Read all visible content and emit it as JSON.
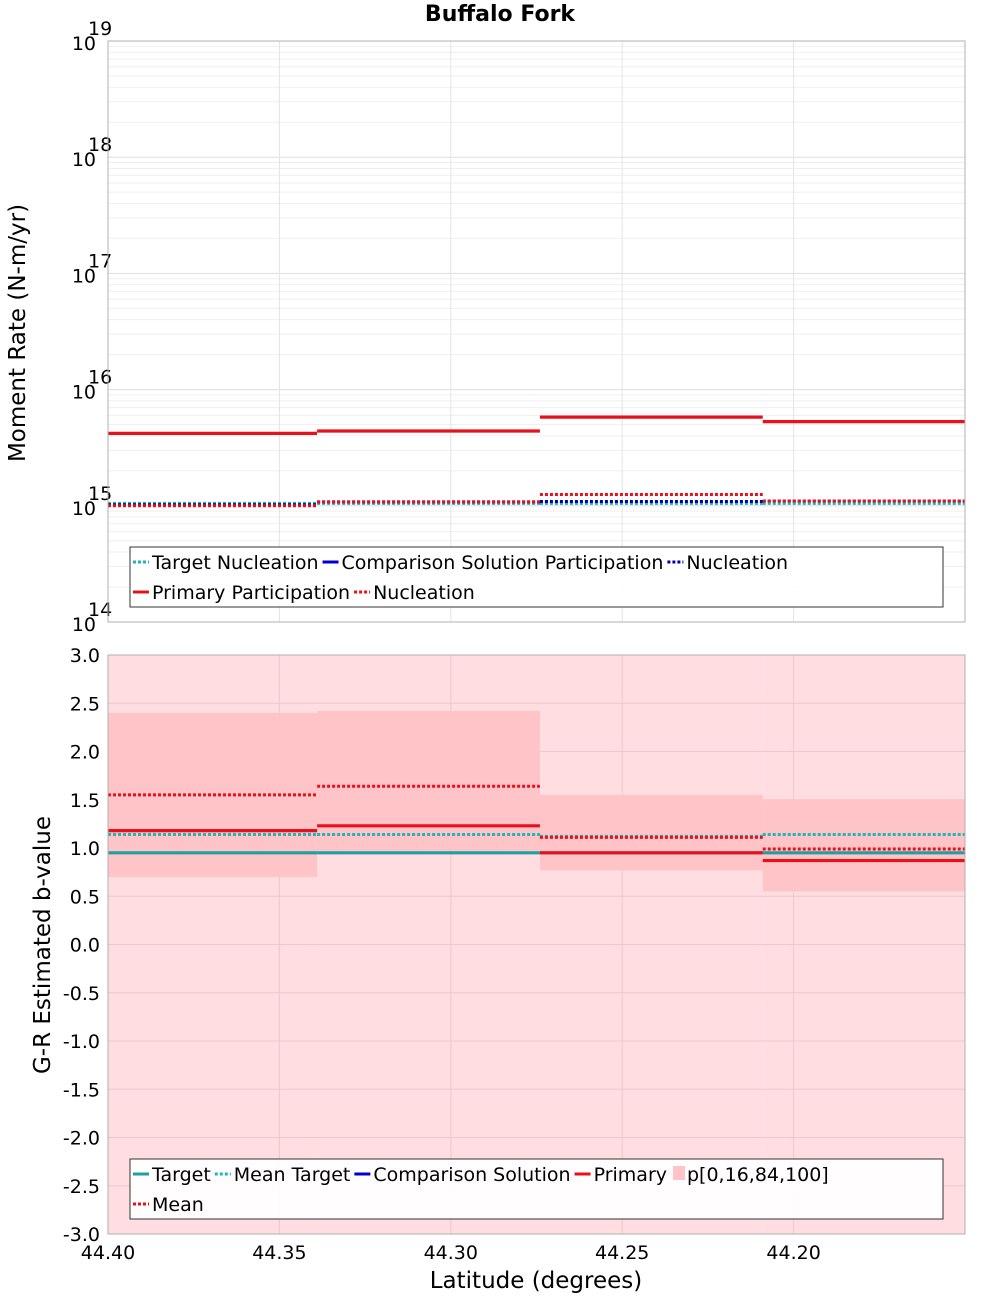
{
  "title": "Buffalo Fork",
  "xlabel": "Latitude (degrees)",
  "x_ticks": [
    "44.40",
    "44.35",
    "44.30",
    "44.25",
    "44.20"
  ],
  "chart_data": [
    {
      "type": "line",
      "step": true,
      "ylabel": "Moment Rate (N-m/yr)",
      "yscale": "log",
      "ylim": [
        100000000000000.0,
        1e+19
      ],
      "xlim": [
        44.4,
        44.15
      ],
      "y_tick_bases": [
        "10",
        "10",
        "10",
        "10",
        "10",
        "10"
      ],
      "y_tick_exponents": [
        "14",
        "15",
        "16",
        "17",
        "18",
        "19"
      ],
      "x_edges": [
        44.4,
        44.339,
        44.274,
        44.209,
        44.15
      ],
      "series": [
        {
          "name": "Target Nucleation",
          "color": "#1fb5b5",
          "style": "dotted",
          "values": [
            1050000000000000.0,
            1050000000000000.0,
            1050000000000000.0,
            1050000000000000.0
          ]
        },
        {
          "name": "Comparison Solution Participation",
          "color": "#0000cc",
          "style": "solid",
          "values": [
            null,
            null,
            null,
            null
          ]
        },
        {
          "name": "Nucleation",
          "color": "#0000aa",
          "style": "dotted",
          "values": [
            1020000000000000.0,
            1080000000000000.0,
            1090000000000000.0,
            1100000000000000.0
          ]
        },
        {
          "name": "Primary Participation",
          "color": "#e8101a",
          "style": "solid",
          "values": [
            4200000000000000.0,
            4400000000000000.0,
            5800000000000000.0,
            5300000000000000.0
          ]
        },
        {
          "name": "Nucleation",
          "color": "#e8101a",
          "style": "dotted",
          "values": [
            1000000000000000.0,
            1080000000000000.0,
            1250000000000000.0,
            1100000000000000.0
          ]
        }
      ]
    },
    {
      "type": "line",
      "step": true,
      "ylabel": "G-R Estimated b-value",
      "ylim": [
        -3.0,
        3.0
      ],
      "xlim": [
        44.4,
        44.15
      ],
      "y_ticks": [
        "-3.0",
        "-2.5",
        "-2.0",
        "-1.5",
        "-1.0",
        "-0.5",
        "0.0",
        "0.5",
        "1.0",
        "1.5",
        "2.0",
        "2.5",
        "3.0"
      ],
      "x_edges": [
        44.4,
        44.339,
        44.274,
        44.209,
        44.15
      ],
      "series": [
        {
          "name": "Target",
          "color": "#1fa0a0",
          "style": "solid",
          "values": [
            0.95,
            0.95,
            0.95,
            0.95
          ]
        },
        {
          "name": "Mean Target",
          "color": "#1fb5b5",
          "style": "dotted",
          "values": [
            1.14,
            1.14,
            1.12,
            1.14
          ]
        },
        {
          "name": "Comparison Solution",
          "color": "#0000cc",
          "style": "solid",
          "values": [
            null,
            null,
            null,
            null
          ]
        },
        {
          "name": "Primary",
          "color": "#e8101a",
          "style": "solid",
          "values": [
            1.18,
            1.23,
            0.95,
            0.87
          ]
        },
        {
          "name": "Mean",
          "color": "#e8101a",
          "style": "dotted",
          "values": [
            1.55,
            1.64,
            1.11,
            0.99
          ]
        }
      ],
      "bands": {
        "name": "p[0,16,84,100]",
        "outer": [
          [
            -3.0,
            3.0
          ],
          [
            -3.0,
            3.0
          ],
          [
            -3.0,
            3.0
          ],
          [
            -3.0,
            3.0
          ]
        ],
        "inner": [
          [
            0.7,
            2.4
          ],
          [
            0.95,
            2.42
          ],
          [
            0.77,
            1.55
          ],
          [
            0.55,
            1.5
          ]
        ],
        "outer_color": "#ffdde0",
        "inner_color": "#ffc4c8"
      }
    }
  ],
  "legends": [
    {
      "rows": [
        [
          {
            "label": "Target Nucleation",
            "color": "#1fb5b5",
            "style": "dotted"
          },
          {
            "label": "Comparison Solution Participation",
            "color": "#0000cc",
            "style": "solid"
          },
          {
            "label": "Nucleation",
            "color": "#0000aa",
            "style": "dotted"
          }
        ],
        [
          {
            "label": "Primary Participation",
            "color": "#e8101a",
            "style": "solid"
          },
          {
            "label": "Nucleation",
            "color": "#e8101a",
            "style": "dotted"
          }
        ]
      ]
    },
    {
      "rows": [
        [
          {
            "label": "Target",
            "color": "#1fa0a0",
            "style": "solid"
          },
          {
            "label": "Mean Target",
            "color": "#1fb5b5",
            "style": "dotted"
          },
          {
            "label": "Comparison Solution",
            "color": "#0000cc",
            "style": "solid"
          },
          {
            "label": "Primary",
            "color": "#e8101a",
            "style": "solid"
          },
          {
            "label": "p[0,16,84,100]",
            "color": "#ffc4c8",
            "style": "patch"
          }
        ],
        [
          {
            "label": "Mean",
            "color": "#e8101a",
            "style": "dotted"
          }
        ]
      ]
    }
  ]
}
